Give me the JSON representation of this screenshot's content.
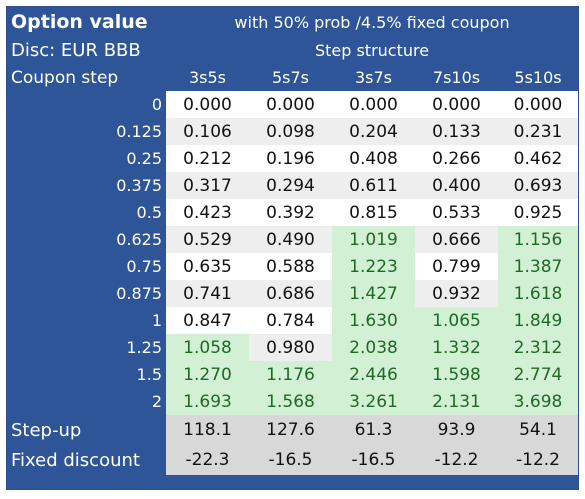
{
  "header": {
    "title": "Option value",
    "subtitle": "with 50% prob /4.5% fixed coupon",
    "discount_label": "Disc: EUR BBB",
    "structure_label": "Step structure",
    "coupon_step_label": "Coupon step"
  },
  "columns": [
    "3s5s",
    "5s7s",
    "3s7s",
    "7s10s",
    "5s10s"
  ],
  "rows": [
    {
      "step": "0",
      "values": [
        "0.000",
        "0.000",
        "0.000",
        "0.000",
        "0.000"
      ],
      "shade": [
        "w",
        "w",
        "w",
        "w",
        "w"
      ]
    },
    {
      "step": "0.125",
      "values": [
        "0.106",
        "0.098",
        "0.204",
        "0.133",
        "0.231"
      ],
      "shade": [
        "g",
        "g",
        "g",
        "g",
        "g"
      ]
    },
    {
      "step": "0.25",
      "values": [
        "0.212",
        "0.196",
        "0.408",
        "0.266",
        "0.462"
      ],
      "shade": [
        "w",
        "w",
        "w",
        "w",
        "w"
      ]
    },
    {
      "step": "0.375",
      "values": [
        "0.317",
        "0.294",
        "0.611",
        "0.400",
        "0.693"
      ],
      "shade": [
        "g",
        "g",
        "g",
        "g",
        "g"
      ]
    },
    {
      "step": "0.5",
      "values": [
        "0.423",
        "0.392",
        "0.815",
        "0.533",
        "0.925"
      ],
      "shade": [
        "w",
        "w",
        "w",
        "w",
        "w"
      ]
    },
    {
      "step": "0.625",
      "values": [
        "0.529",
        "0.490",
        "1.019",
        "0.666",
        "1.156"
      ],
      "shade": [
        "g",
        "g",
        "G",
        "g",
        "G"
      ]
    },
    {
      "step": "0.75",
      "values": [
        "0.635",
        "0.588",
        "1.223",
        "0.799",
        "1.387"
      ],
      "shade": [
        "w",
        "w",
        "G",
        "w",
        "G"
      ]
    },
    {
      "step": "0.875",
      "values": [
        "0.741",
        "0.686",
        "1.427",
        "0.932",
        "1.618"
      ],
      "shade": [
        "g",
        "g",
        "G",
        "g",
        "G"
      ]
    },
    {
      "step": "1",
      "values": [
        "0.847",
        "0.784",
        "1.630",
        "1.065",
        "1.849"
      ],
      "shade": [
        "w",
        "w",
        "G",
        "G",
        "G"
      ]
    },
    {
      "step": "1.25",
      "values": [
        "1.058",
        "0.980",
        "2.038",
        "1.332",
        "2.312"
      ],
      "shade": [
        "G",
        "g",
        "G",
        "G",
        "G"
      ]
    },
    {
      "step": "1.5",
      "values": [
        "1.270",
        "1.176",
        "2.446",
        "1.598",
        "2.774"
      ],
      "shade": [
        "G",
        "G",
        "G",
        "G",
        "G"
      ]
    },
    {
      "step": "2",
      "values": [
        "1.693",
        "1.568",
        "3.261",
        "2.131",
        "3.698"
      ],
      "shade": [
        "G",
        "G",
        "G",
        "G",
        "G"
      ]
    }
  ],
  "footer": [
    {
      "label": "Step-up",
      "values": [
        "118.1",
        "127.6",
        "61.3",
        "93.9",
        "54.1"
      ]
    },
    {
      "label": "Fixed discount",
      "values": [
        "-22.3",
        "-16.5",
        "-16.5",
        "-12.2",
        "-12.2"
      ]
    }
  ],
  "colors": {
    "header_blue": "#2d5597",
    "highlight_green": "#d2f0d4",
    "highlight_text": "#1e6a25",
    "alt_grey": "#eeeeee",
    "footer_grey": "#d8d8d8"
  }
}
